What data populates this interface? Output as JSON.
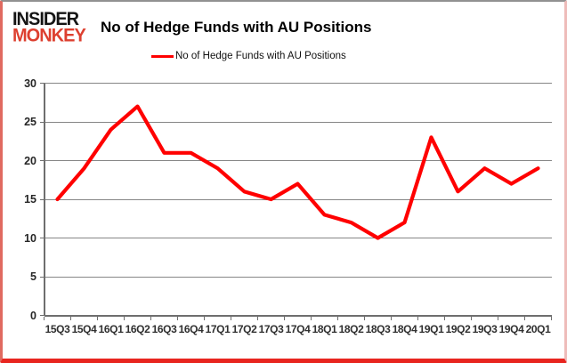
{
  "logo": {
    "line1": "INSIDER",
    "line2": "MONKEY"
  },
  "title": "No of Hedge Funds with AU Positions",
  "colors": {
    "series": "#ff0000",
    "grid": "#868686",
    "axis": "#6e6e6e",
    "logo_red": "#dd4030",
    "border_red": "#e8251f"
  },
  "chart_data": {
    "type": "line",
    "title": "No of Hedge Funds with AU Positions",
    "categories": [
      "15Q3",
      "15Q4",
      "16Q1",
      "16Q2",
      "16Q3",
      "16Q4",
      "17Q1",
      "17Q2",
      "17Q3",
      "17Q4",
      "18Q1",
      "18Q2",
      "18Q3",
      "18Q4",
      "19Q1",
      "19Q2",
      "19Q3",
      "19Q4",
      "20Q1"
    ],
    "values": [
      15,
      19,
      24,
      27,
      21,
      21,
      19,
      16,
      15,
      17,
      13,
      12,
      10,
      12,
      23,
      16,
      19,
      17,
      19
    ],
    "xlabel": "",
    "ylabel": "",
    "ylim": [
      0,
      30
    ],
    "yticks": [
      0,
      5,
      10,
      15,
      20,
      25,
      30
    ],
    "grid": true,
    "legend": {
      "position": "top-center",
      "label": "No of Hedge Funds with AU Positions"
    }
  }
}
